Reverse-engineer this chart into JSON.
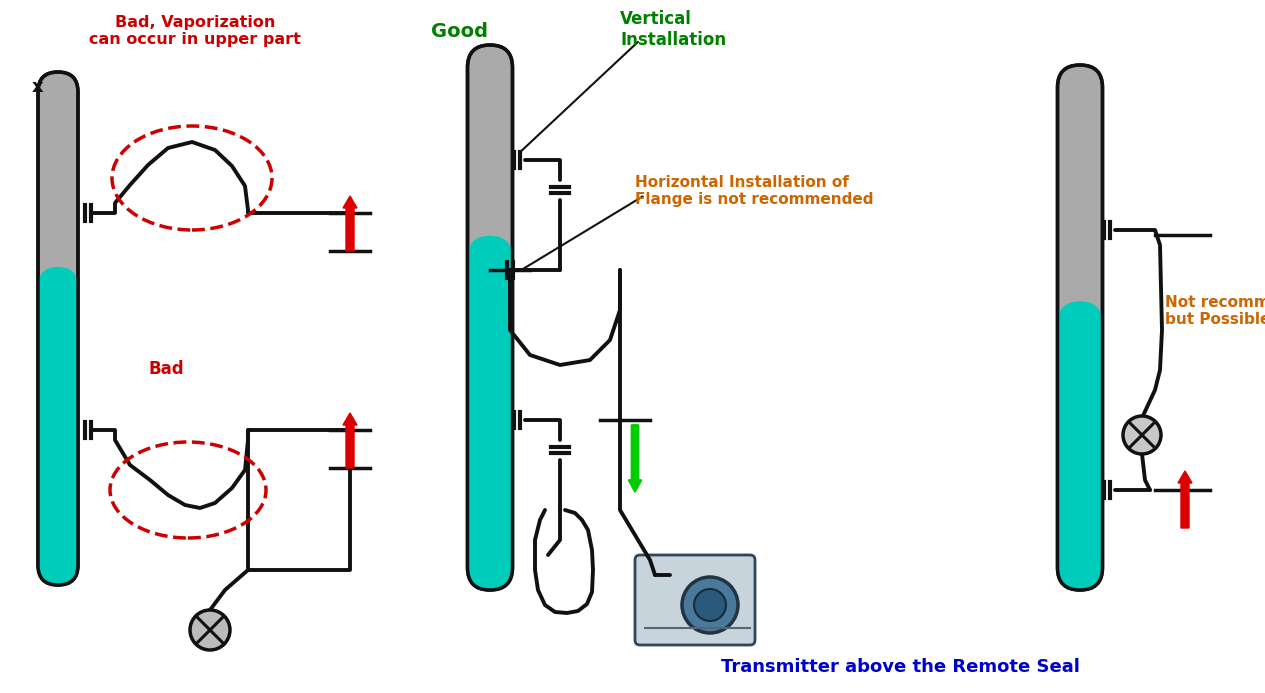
{
  "background_color": "#ffffff",
  "labels": {
    "bad_vaporization": "Bad, Vaporization\ncan occur in upper part",
    "bad": "Bad",
    "good": "Good",
    "vertical_installation": "Vertical\nInstallation",
    "horizontal_not_recommended": "Horizontal Installation of\nFlange is not recommended",
    "not_recommended": "Not recommended\nbut Possible",
    "transmitter_above": "Transmitter above the Remote Seal"
  },
  "colors": {
    "bad_text": "#cc0000",
    "good_text": "#008000",
    "warning_text": "#cc6600",
    "blue_text": "#0000cc",
    "vessel_gray": "#aaaaaa",
    "liquid_cyan": "#00ccbb",
    "pipe_black": "#111111",
    "arrow_red": "#dd0000",
    "arrow_green": "#00cc00",
    "dashed_red": "#cc0000"
  }
}
